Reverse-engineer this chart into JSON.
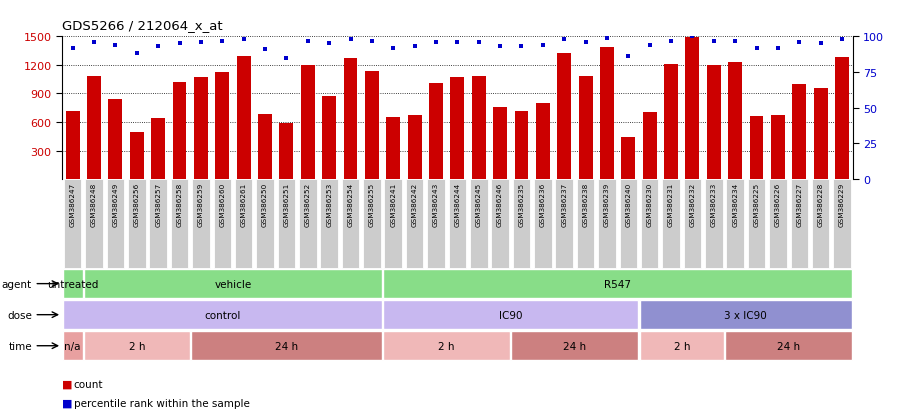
{
  "title": "GDS5266 / 212064_x_at",
  "samples": [
    "GSM386247",
    "GSM386248",
    "GSM386249",
    "GSM386256",
    "GSM386257",
    "GSM386258",
    "GSM386259",
    "GSM386260",
    "GSM386261",
    "GSM386250",
    "GSM386251",
    "GSM386252",
    "GSM386253",
    "GSM386254",
    "GSM386255",
    "GSM386241",
    "GSM386242",
    "GSM386243",
    "GSM386244",
    "GSM386245",
    "GSM386246",
    "GSM386235",
    "GSM386236",
    "GSM386237",
    "GSM386238",
    "GSM386239",
    "GSM386240",
    "GSM386230",
    "GSM386231",
    "GSM386232",
    "GSM386233",
    "GSM386234",
    "GSM386225",
    "GSM386226",
    "GSM386227",
    "GSM386228",
    "GSM386229"
  ],
  "bar_values": [
    710,
    1080,
    840,
    490,
    640,
    1020,
    1070,
    1120,
    1290,
    680,
    590,
    1195,
    870,
    1270,
    1130,
    650,
    670,
    1010,
    1070,
    1080,
    760,
    720,
    800,
    1320,
    1080,
    1390,
    440,
    700,
    1210,
    1490,
    1200,
    1230,
    660,
    670,
    1000,
    960,
    1280
  ],
  "percentile_values": [
    92,
    96,
    94,
    88,
    93,
    95,
    96,
    97,
    98,
    91,
    85,
    97,
    95,
    98,
    97,
    92,
    93,
    96,
    96,
    96,
    93,
    93,
    94,
    98,
    96,
    99,
    86,
    94,
    97,
    100,
    97,
    97,
    92,
    92,
    96,
    95,
    98
  ],
  "bar_color": "#cc0000",
  "dot_color": "#0000cc",
  "yticks_left": [
    300,
    600,
    900,
    1200,
    1500
  ],
  "yticks_right": [
    0,
    25,
    50,
    75,
    100
  ],
  "agent_segments": [
    {
      "text": "untreated",
      "start": 0,
      "end": 1,
      "color": "#88dd88"
    },
    {
      "text": "vehicle",
      "start": 1,
      "end": 15,
      "color": "#88dd88"
    },
    {
      "text": "R547",
      "start": 15,
      "end": 37,
      "color": "#88dd88"
    }
  ],
  "dose_segments": [
    {
      "text": "control",
      "start": 0,
      "end": 15,
      "color": "#c8b8f0"
    },
    {
      "text": "IC90",
      "start": 15,
      "end": 27,
      "color": "#c8b8f0"
    },
    {
      "text": "3 x IC90",
      "start": 27,
      "end": 37,
      "color": "#9090d0"
    }
  ],
  "time_segments": [
    {
      "text": "n/a",
      "start": 0,
      "end": 1,
      "color": "#e8a0a0"
    },
    {
      "text": "2 h",
      "start": 1,
      "end": 6,
      "color": "#f0b8b8"
    },
    {
      "text": "24 h",
      "start": 6,
      "end": 15,
      "color": "#cc8080"
    },
    {
      "text": "2 h",
      "start": 15,
      "end": 21,
      "color": "#f0b8b8"
    },
    {
      "text": "24 h",
      "start": 21,
      "end": 27,
      "color": "#cc8080"
    },
    {
      "text": "2 h",
      "start": 27,
      "end": 31,
      "color": "#f0b8b8"
    },
    {
      "text": "24 h",
      "start": 31,
      "end": 37,
      "color": "#cc8080"
    }
  ],
  "bg_color": "#ffffff",
  "label_color": "#000000",
  "tick_label_bg": "#cccccc"
}
